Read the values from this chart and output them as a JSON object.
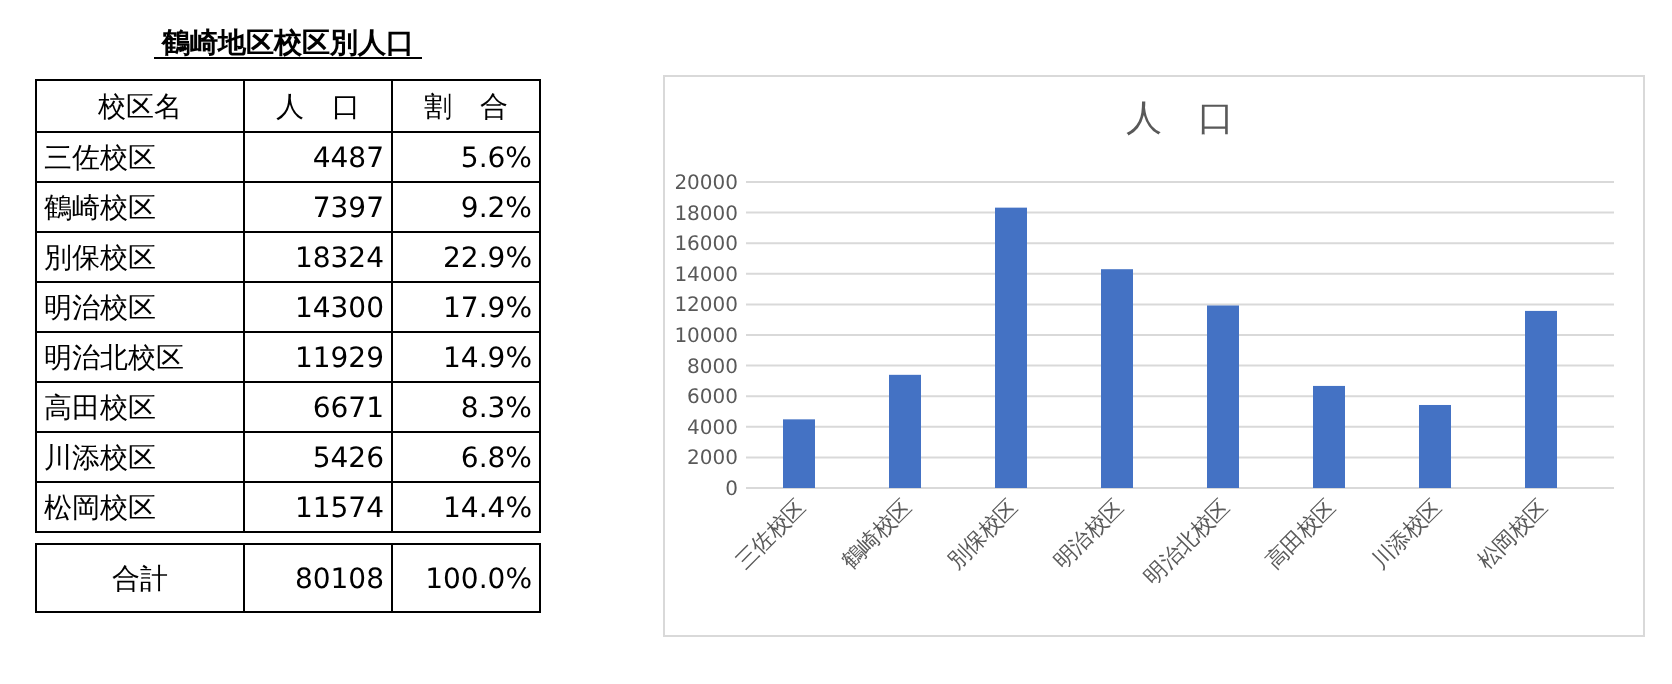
{
  "chart_data": [
    {
      "type": "other",
      "title": "鶴崎地区校区別人口",
      "annotations": [
        "校区名",
        "人　口",
        "割　合",
        "三佐校区",
        "4487",
        "5.6%",
        "鶴崎校区",
        "7397",
        "9.2%",
        "別保校区",
        "18324",
        "22.9%",
        "明治校区",
        "14300",
        "17.9%",
        "明治北校区",
        "11929",
        "14.9%",
        "高田校区",
        "6671",
        "8.3%",
        "川添校区",
        "5426",
        "6.8%",
        "松岡校区",
        "11574",
        "14.4%",
        "合計",
        "80108",
        "100.0%"
      ]
    },
    {
      "type": "bar",
      "title": "人　口",
      "categories": [
        "三佐校区",
        "鶴崎校区",
        "別保校区",
        "明治校区",
        "明治北校区",
        "高田校区",
        "川添校区",
        "松岡校区"
      ],
      "values": [
        4487,
        7397,
        18324,
        14300,
        11929,
        6671,
        5426,
        11574
      ],
      "color": "#4472c4",
      "ylim": [
        0,
        20000
      ],
      "yticks": [
        0,
        2000,
        4000,
        6000,
        8000,
        10000,
        12000,
        14000,
        16000,
        18000,
        20000
      ],
      "grid": "y"
    }
  ]
}
